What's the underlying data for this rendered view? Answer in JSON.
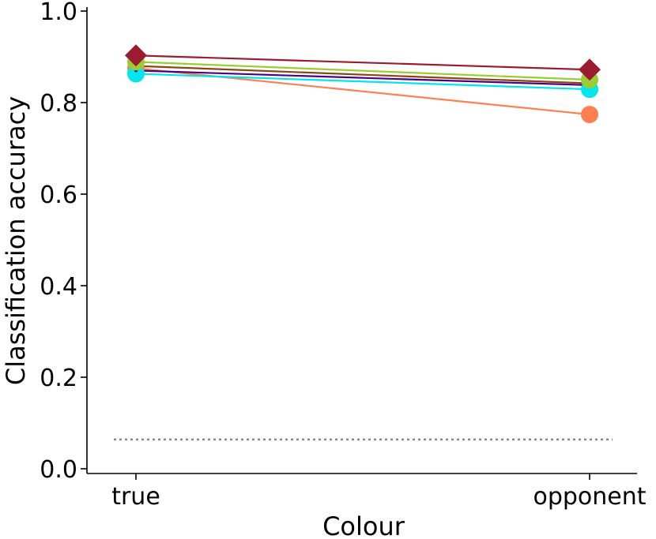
{
  "chart_data": {
    "type": "line",
    "xlabel": "Colour",
    "ylabel": "Classification accuracy",
    "categories": [
      "true",
      "opponent"
    ],
    "ylim": [
      0.0,
      1.0
    ],
    "yticks": [
      "0.0",
      "0.2",
      "0.4",
      "0.6",
      "0.8",
      "1.0"
    ],
    "grid": false,
    "chance_level": 0.064,
    "series": [
      {
        "color": "#ff7f50",
        "marker": "circle",
        "values": [
          0.875,
          0.774
        ]
      },
      {
        "color": "#00e5ee",
        "marker": "circle",
        "values": [
          0.863,
          0.829
        ]
      },
      {
        "color": "#4b0082",
        "marker": "line",
        "values": [
          0.87,
          0.838
        ]
      },
      {
        "color": "#8b4513",
        "marker": "line",
        "values": [
          0.88,
          0.842
        ]
      },
      {
        "color": "#9acd32",
        "marker": "circle",
        "values": [
          0.889,
          0.85
        ]
      },
      {
        "color": "#9b1b30",
        "marker": "diamond",
        "values": [
          0.903,
          0.872
        ]
      }
    ]
  }
}
